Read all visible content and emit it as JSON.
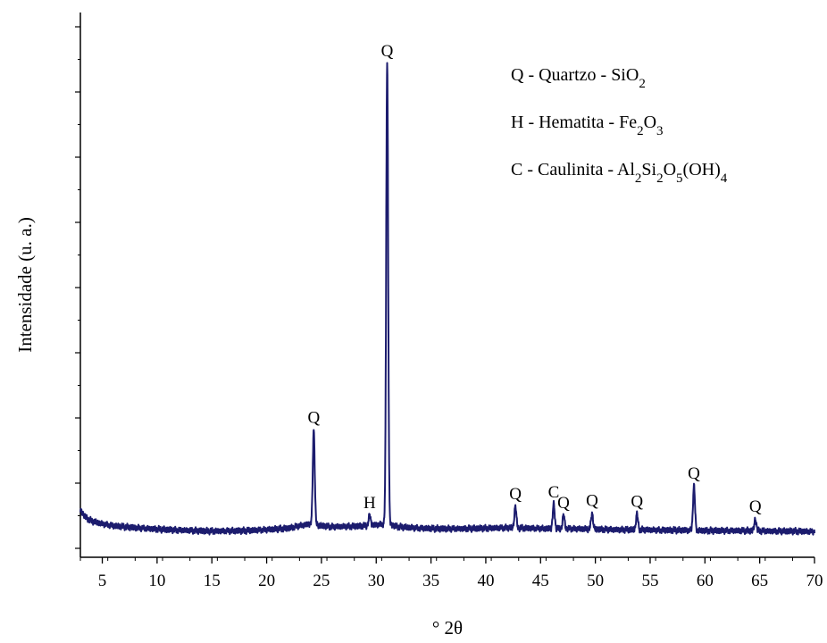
{
  "chart_data": {
    "type": "line",
    "title": "",
    "xlabel": "° 2θ",
    "ylabel": "Intensidade (u. a.)",
    "xlim": [
      3,
      70
    ],
    "ylim": [
      0,
      100
    ],
    "xticks": [
      "5",
      "10",
      "15",
      "20",
      "25",
      "30",
      "35",
      "40",
      "45",
      "50",
      "55",
      "60",
      "65",
      "70"
    ],
    "grid": false,
    "line_color": "#1c1c6e",
    "series": [
      {
        "baseline": [
          [
            3.0,
            6.0
          ],
          [
            3.5,
            4.5
          ],
          [
            4.0,
            3.8
          ],
          [
            5.0,
            3.2
          ],
          [
            6.0,
            2.8
          ],
          [
            8.0,
            2.4
          ],
          [
            10.0,
            2.1
          ],
          [
            12.0,
            1.9
          ],
          [
            15.0,
            1.7
          ],
          [
            18.0,
            1.8
          ],
          [
            20.0,
            2.0
          ],
          [
            22.0,
            2.3
          ],
          [
            23.0,
            2.8
          ],
          [
            24.0,
            3.2
          ],
          [
            25.0,
            2.8
          ],
          [
            26.0,
            2.6
          ],
          [
            28.0,
            2.7
          ],
          [
            29.0,
            2.8
          ],
          [
            30.0,
            3.0
          ],
          [
            31.0,
            3.2
          ],
          [
            32.0,
            2.6
          ],
          [
            34.0,
            2.3
          ],
          [
            36.0,
            2.2
          ],
          [
            38.0,
            2.2
          ],
          [
            40.0,
            2.3
          ],
          [
            42.0,
            2.4
          ],
          [
            44.0,
            2.3
          ],
          [
            46.0,
            2.2
          ],
          [
            48.0,
            2.2
          ],
          [
            50.0,
            2.1
          ],
          [
            52.0,
            2.0
          ],
          [
            54.0,
            2.0
          ],
          [
            56.0,
            1.9
          ],
          [
            58.0,
            1.9
          ],
          [
            60.0,
            1.8
          ],
          [
            62.0,
            1.8
          ],
          [
            64.0,
            1.8
          ],
          [
            66.0,
            1.7
          ],
          [
            68.0,
            1.7
          ],
          [
            70.0,
            1.6
          ]
        ],
        "peaks": [
          {
            "x": 24.3,
            "y": 22.5
          },
          {
            "x": 29.4,
            "y": 5.0
          },
          {
            "x": 31.0,
            "y": 98.0
          },
          {
            "x": 42.7,
            "y": 6.8
          },
          {
            "x": 46.2,
            "y": 7.2
          },
          {
            "x": 47.1,
            "y": 5.0
          },
          {
            "x": 49.7,
            "y": 5.4
          },
          {
            "x": 53.8,
            "y": 5.2
          },
          {
            "x": 59.0,
            "y": 11.0
          },
          {
            "x": 64.6,
            "y": 4.2
          }
        ]
      }
    ],
    "annotations": [
      {
        "label": "Q",
        "x": 24.3,
        "y": 22.5
      },
      {
        "label": "H",
        "x": 29.4,
        "y": 5.0
      },
      {
        "label": "Q",
        "x": 31.0,
        "y": 98.0
      },
      {
        "label": "Q",
        "x": 42.7,
        "y": 6.8
      },
      {
        "label": "C",
        "x": 46.2,
        "y": 7.2
      },
      {
        "label": "Q",
        "x": 47.1,
        "y": 5.0
      },
      {
        "label": "Q",
        "x": 49.7,
        "y": 5.4
      },
      {
        "label": "Q",
        "x": 53.8,
        "y": 5.2
      },
      {
        "label": "Q",
        "x": 59.0,
        "y": 11.0
      },
      {
        "label": "Q",
        "x": 64.6,
        "y": 4.2
      }
    ],
    "legend": [
      {
        "key": "Q",
        "name": "Quartzo",
        "formula": [
          [
            "Si",
            ""
          ],
          [
            "O",
            "2"
          ]
        ]
      },
      {
        "key": "H",
        "name": "Hematita",
        "formula": [
          [
            "Fe",
            "2"
          ],
          [
            "O",
            "3"
          ]
        ]
      },
      {
        "key": "C",
        "name": "Caulinita",
        "formula": [
          [
            "Al",
            "2"
          ],
          [
            "Si",
            "2"
          ],
          [
            "O",
            "5"
          ],
          [
            "(OH)",
            "4"
          ]
        ]
      }
    ],
    "legend_position": "top-right"
  }
}
